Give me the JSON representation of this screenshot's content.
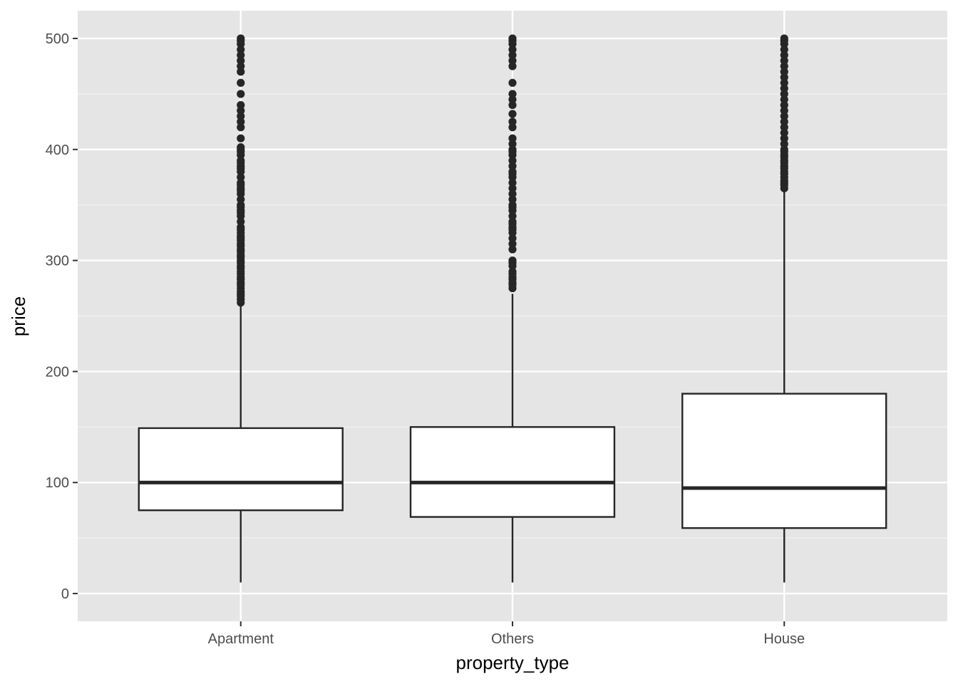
{
  "chart_data": {
    "type": "boxplot",
    "title": "",
    "xlabel": "property_type",
    "ylabel": "price",
    "ylim": [
      -25,
      525
    ],
    "y_ticks": [
      0,
      100,
      200,
      300,
      400,
      500
    ],
    "y_minor_ticks": [
      50,
      150,
      250,
      350,
      450
    ],
    "y_tick_labels": [
      "0",
      "100",
      "200",
      "300",
      "400",
      "500"
    ],
    "grid": true,
    "legend": "none",
    "colors": {
      "panel_background": "#e5e5e5",
      "grid_major": "#ffffff",
      "grid_minor": "#f2f2f2",
      "box_fill": "#ffffff",
      "box_line": "#262626",
      "outlier": "#262626",
      "tick_text": "#4d4d4d",
      "axis_title": "#000000"
    },
    "categories": [
      "Apartment",
      "Others",
      "House"
    ],
    "boxes": [
      {
        "category": "Apartment",
        "whisker_low": 10,
        "q1": 75,
        "median": 100,
        "q3": 149,
        "whisker_high": 260,
        "outliers": [
          262,
          265,
          268,
          270,
          272,
          275,
          278,
          280,
          283,
          285,
          288,
          290,
          293,
          295,
          298,
          300,
          303,
          305,
          308,
          310,
          313,
          315,
          318,
          320,
          322,
          325,
          328,
          330,
          335,
          340,
          343,
          345,
          348,
          350,
          355,
          360,
          363,
          365,
          368,
          370,
          375,
          380,
          383,
          385,
          388,
          390,
          395,
          398,
          400,
          402,
          410,
          420,
          425,
          430,
          435,
          440,
          450,
          460,
          470,
          475,
          480,
          485,
          490,
          495,
          498,
          500
        ]
      },
      {
        "category": "Others",
        "whisker_low": 10,
        "q1": 69,
        "median": 100,
        "q3": 150,
        "whisker_high": 270,
        "outliers": [
          275,
          278,
          280,
          283,
          285,
          288,
          290,
          295,
          298,
          300,
          310,
          315,
          320,
          325,
          328,
          330,
          333,
          335,
          340,
          345,
          348,
          350,
          355,
          360,
          365,
          370,
          375,
          378,
          380,
          385,
          390,
          395,
          398,
          400,
          405,
          410,
          420,
          425,
          432,
          440,
          445,
          450,
          460,
          475,
          480,
          485,
          490,
          495,
          498,
          500
        ]
      },
      {
        "category": "House",
        "whisker_low": 10,
        "q1": 59,
        "median": 95,
        "q3": 180,
        "whisker_high": 362,
        "outliers": [
          365,
          368,
          370,
          372,
          375,
          378,
          380,
          383,
          385,
          388,
          390,
          393,
          395,
          398,
          400,
          405,
          410,
          415,
          420,
          425,
          430,
          435,
          440,
          445,
          450,
          455,
          460,
          465,
          470,
          475,
          480,
          485,
          490,
          495,
          498,
          500
        ]
      }
    ]
  }
}
